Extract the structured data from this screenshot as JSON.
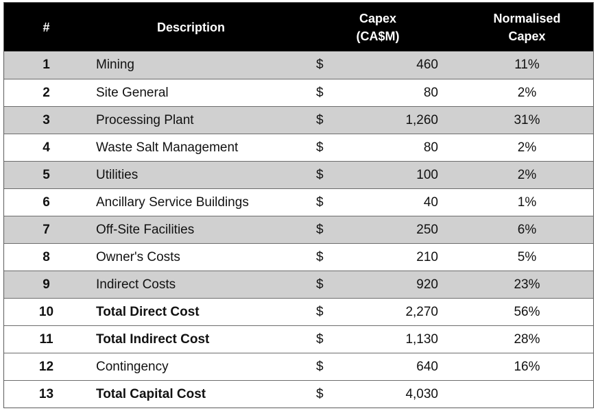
{
  "header": {
    "num": "#",
    "description": "Description",
    "capex_line1": "Capex",
    "capex_line2": "(CA$M)",
    "norm_line1": "Normalised",
    "norm_line2": "Capex"
  },
  "rows": [
    {
      "num": "1",
      "description": "Mining",
      "currency": "$",
      "amount": "460",
      "percent": "11%",
      "shaded": true,
      "bold": false
    },
    {
      "num": "2",
      "description": "Site General",
      "currency": "$",
      "amount": "80",
      "percent": "2%",
      "shaded": false,
      "bold": false
    },
    {
      "num": "3",
      "description": "Processing Plant",
      "currency": "$",
      "amount": "1,260",
      "percent": "31%",
      "shaded": true,
      "bold": false
    },
    {
      "num": "4",
      "description": "Waste Salt Management",
      "currency": "$",
      "amount": "80",
      "percent": "2%",
      "shaded": false,
      "bold": false
    },
    {
      "num": "5",
      "description": "Utilities",
      "currency": "$",
      "amount": "100",
      "percent": "2%",
      "shaded": true,
      "bold": false
    },
    {
      "num": "6",
      "description": "Ancillary Service Buildings",
      "currency": "$",
      "amount": "40",
      "percent": "1%",
      "shaded": false,
      "bold": false
    },
    {
      "num": "7",
      "description": "Off-Site Facilities",
      "currency": "$",
      "amount": "250",
      "percent": "6%",
      "shaded": true,
      "bold": false
    },
    {
      "num": "8",
      "description": "Owner's Costs",
      "currency": "$",
      "amount": "210",
      "percent": "5%",
      "shaded": false,
      "bold": false
    },
    {
      "num": "9",
      "description": "Indirect Costs",
      "currency": "$",
      "amount": "920",
      "percent": "23%",
      "shaded": true,
      "bold": false
    },
    {
      "num": "10",
      "description": "Total Direct Cost",
      "currency": "$",
      "amount": "2,270",
      "percent": "56%",
      "shaded": false,
      "bold": true
    },
    {
      "num": "11",
      "description": "Total Indirect Cost",
      "currency": "$",
      "amount": "1,130",
      "percent": "28%",
      "shaded": false,
      "bold": true
    },
    {
      "num": "12",
      "description": "Contingency",
      "currency": "$",
      "amount": "640",
      "percent": "16%",
      "shaded": false,
      "bold": false
    },
    {
      "num": "13",
      "description": "Total Capital Cost",
      "currency": "$",
      "amount": "4,030",
      "percent": "",
      "shaded": false,
      "bold": true
    }
  ],
  "colors": {
    "header_bg": "#000000",
    "header_text": "#ffffff",
    "shaded_row": "#d0d0d0",
    "border": "#6b6b6b"
  }
}
